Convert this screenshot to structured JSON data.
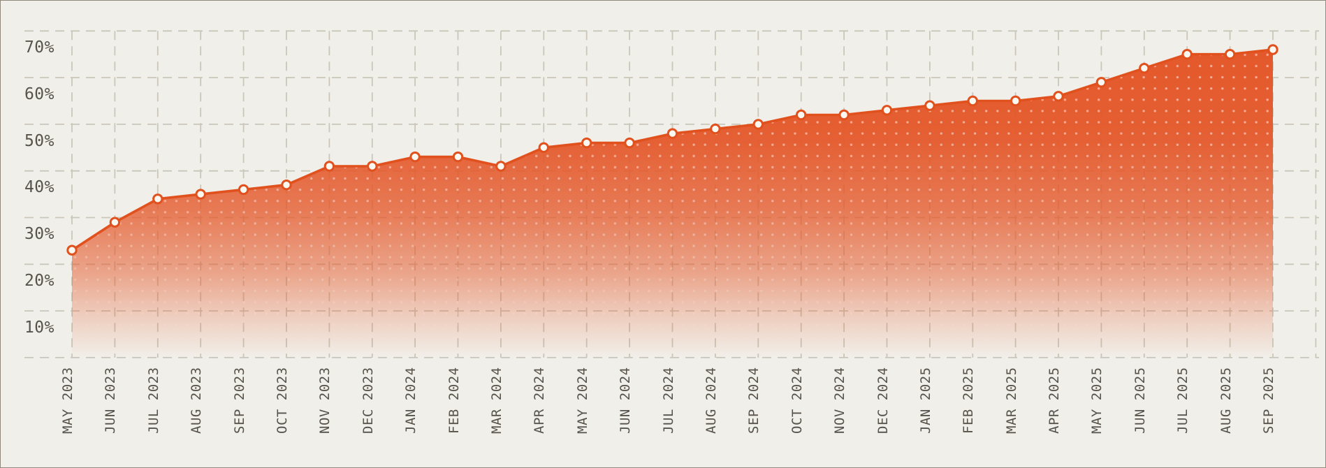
{
  "figure": {
    "title": "",
    "description": "Area chart of a percentage metric by month, May 2023 through September 2025"
  },
  "chart_data": {
    "type": "area",
    "title": "",
    "xlabel": "",
    "ylabel": "",
    "unit": "%",
    "x": [
      "MAY 2023",
      "JUN 2023",
      "JUL 2023",
      "AUG 2023",
      "SEP 2023",
      "OCT 2023",
      "NOV 2023",
      "DEC 2023",
      "JAN 2024",
      "FEB 2024",
      "MAR 2024",
      "APR 2024",
      "MAY 2024",
      "JUN 2024",
      "JUL 2024",
      "AUG 2024",
      "SEP 2024",
      "OCT 2024",
      "NOV 2024",
      "DEC 2024",
      "JAN 2025",
      "FEB 2025",
      "MAR 2025",
      "APR 2025",
      "MAY 2025",
      "JUN 2025",
      "JUL 2025",
      "AUG 2025",
      "SEP 2025"
    ],
    "series": [
      {
        "name": "value",
        "values": [
          27,
          33,
          38,
          39,
          40,
          41,
          45,
          45,
          47,
          47,
          45,
          49,
          50,
          50,
          52,
          53,
          54,
          56,
          56,
          57,
          58,
          59,
          59,
          60,
          63,
          66,
          69,
          69,
          70
        ]
      }
    ],
    "y_ticks": [
      70,
      60,
      50,
      40,
      30,
      20,
      10
    ],
    "y_tick_suffix": "%",
    "ylim": [
      0,
      75
    ],
    "legend": "none",
    "grid": {
      "show": true,
      "style": "dashed",
      "vertical": "one line per month plus one trailing line",
      "horizontal_lines": 8,
      "horizontal_offset_pct": 4
    },
    "markers": "open circle at every data point",
    "fill": "vertical gradient fading to background with white dot pattern"
  },
  "style": {
    "background": "#f1efe9",
    "frame_border": "#8f8a7d",
    "grid_color": "#cac6b9",
    "axis_text_color": "#57534b",
    "line_color": "#e0511e",
    "fill_top_color": "#e4582a",
    "marker_fill": "#fbf8f1",
    "dot_pattern_color": "#ffffff"
  }
}
